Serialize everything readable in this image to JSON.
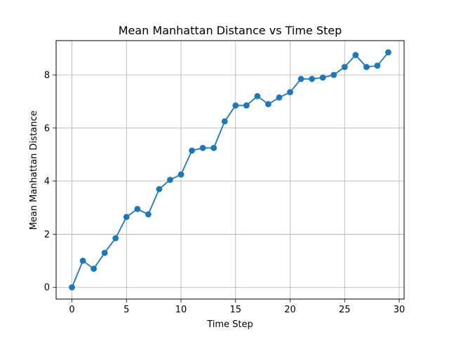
{
  "chart_data": {
    "type": "line",
    "title": "Mean Manhattan Distance vs Time Step",
    "xlabel": "Time Step",
    "ylabel": "Mean Manhattan Distance",
    "x": [
      0,
      1,
      2,
      3,
      4,
      5,
      6,
      7,
      8,
      9,
      10,
      11,
      12,
      13,
      14,
      15,
      16,
      17,
      18,
      19,
      20,
      21,
      22,
      23,
      24,
      25,
      26,
      27,
      28,
      29
    ],
    "series": [
      {
        "values": [
          0.0,
          1.0,
          0.7,
          1.3,
          1.85,
          2.65,
          2.95,
          2.75,
          3.7,
          4.05,
          4.25,
          5.15,
          5.25,
          5.25,
          6.25,
          6.85,
          6.85,
          7.2,
          6.9,
          7.15,
          7.35,
          7.85,
          7.85,
          7.9,
          8.0,
          8.3,
          8.75,
          8.3,
          8.35,
          8.85
        ],
        "color": "#1f77b4"
      }
    ],
    "xlim": [
      -1.45,
      30.45
    ],
    "ylim": [
      -0.4425,
      9.2925
    ],
    "xticks": [
      0,
      5,
      10,
      15,
      20,
      25,
      30
    ],
    "yticks": [
      0,
      2,
      4,
      6,
      8
    ],
    "xtick_labels": [
      "0",
      "5",
      "10",
      "15",
      "20",
      "25",
      "30"
    ],
    "ytick_labels": [
      "0",
      "2",
      "4",
      "6",
      "8"
    ],
    "grid": true,
    "markers": true
  }
}
